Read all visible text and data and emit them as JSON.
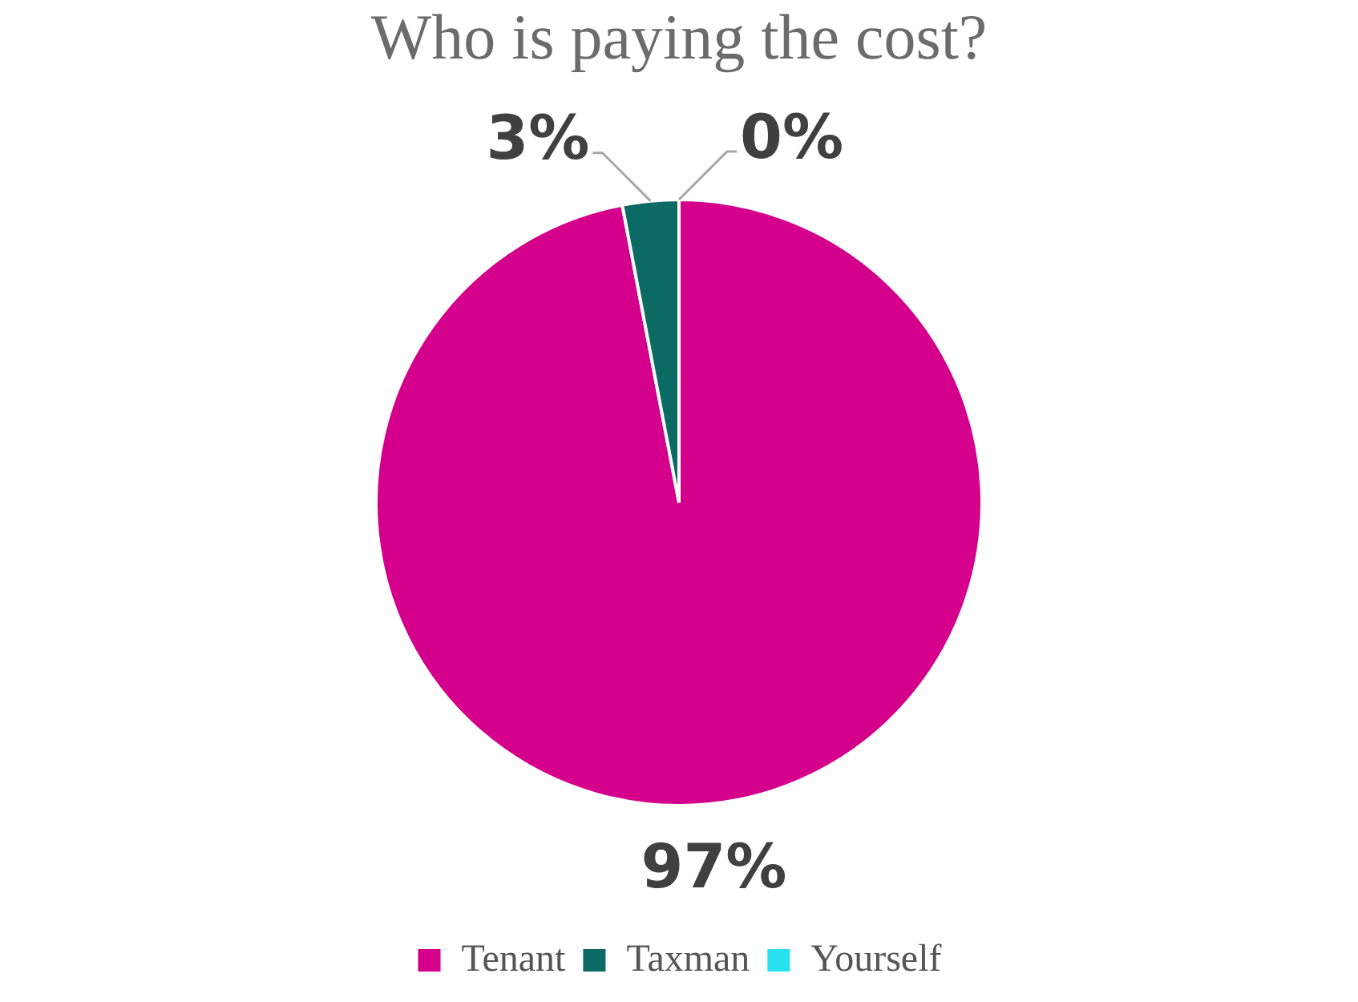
{
  "chart_data": {
    "type": "pie",
    "title": "Who is paying the cost?",
    "categories": [
      "Tenant",
      "Taxman",
      "Yourself"
    ],
    "values": [
      97,
      3,
      0
    ],
    "colors": [
      "#d4008c",
      "#0b6a64",
      "#27e0f0"
    ],
    "value_labels": [
      "97%",
      "3%",
      "0%"
    ],
    "legend": "bottom"
  }
}
